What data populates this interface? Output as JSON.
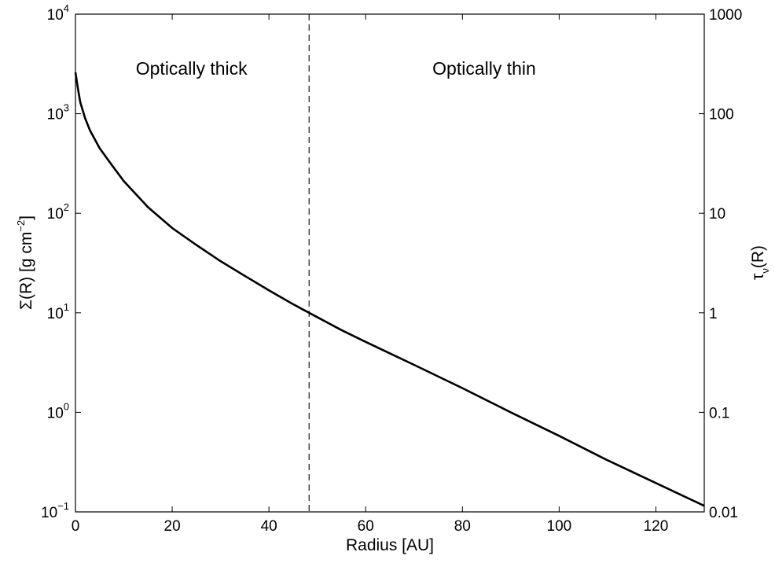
{
  "chart_data": {
    "type": "line",
    "xlabel": "Radius [AU]",
    "ylabel": {
      "prefix": "Σ(R) [g cm",
      "exponent": "−2",
      "suffix": "]"
    },
    "y2label": {
      "base": "τ",
      "subscript": "ν",
      "suffix": "(R)"
    },
    "xlim": [
      0,
      130
    ],
    "ylim": [
      0.1,
      10000
    ],
    "yscale": "log",
    "y2lim": [
      0.01,
      1000
    ],
    "y2scale": "log",
    "grid": false,
    "x_ticks": [
      {
        "value": 0,
        "label": "0"
      },
      {
        "value": 20,
        "label": "20"
      },
      {
        "value": 40,
        "label": "40"
      },
      {
        "value": 60,
        "label": "60"
      },
      {
        "value": 80,
        "label": "80"
      },
      {
        "value": 100,
        "label": "100"
      },
      {
        "value": 120,
        "label": "120"
      }
    ],
    "y_ticks": [
      {
        "value": 10000,
        "base": "10",
        "exponent": "4"
      },
      {
        "value": 1000,
        "base": "10",
        "exponent": "3"
      },
      {
        "value": 100,
        "base": "10",
        "exponent": "2"
      },
      {
        "value": 10,
        "base": "10",
        "exponent": "1"
      },
      {
        "value": 1,
        "base": "10",
        "exponent": "0"
      },
      {
        "value": 0.1,
        "base": "10",
        "exponent": "−1"
      }
    ],
    "y2_ticks": [
      {
        "value": 1000,
        "label": "1000"
      },
      {
        "value": 100,
        "label": "100"
      },
      {
        "value": 10,
        "label": "10"
      },
      {
        "value": 1,
        "label": "1"
      },
      {
        "value": 0.1,
        "label": "0.1"
      },
      {
        "value": 0.01,
        "label": "0.01"
      }
    ],
    "series": [
      {
        "color": "#000000",
        "x": [
          0,
          0.5,
          1,
          2,
          3,
          5,
          7,
          10,
          15,
          20,
          25,
          30,
          35,
          40,
          45,
          48.3,
          55,
          60,
          70,
          80,
          90,
          100,
          110,
          120,
          130
        ],
        "y": [
          2600,
          1800,
          1300,
          900,
          680,
          450,
          330,
          210,
          115,
          71,
          48,
          33,
          23.5,
          16.8,
          12.2,
          10,
          6.7,
          5.1,
          3.0,
          1.75,
          1.0,
          0.58,
          0.33,
          0.195,
          0.115
        ]
      }
    ],
    "vline": {
      "x": 48.3,
      "style": "dashed",
      "color": "#000000"
    },
    "annotations": [
      {
        "text": "Optically thick",
        "x": 24,
        "y": 3000
      },
      {
        "text": "Optically thin",
        "x": 84.5,
        "y": 3000
      }
    ]
  }
}
